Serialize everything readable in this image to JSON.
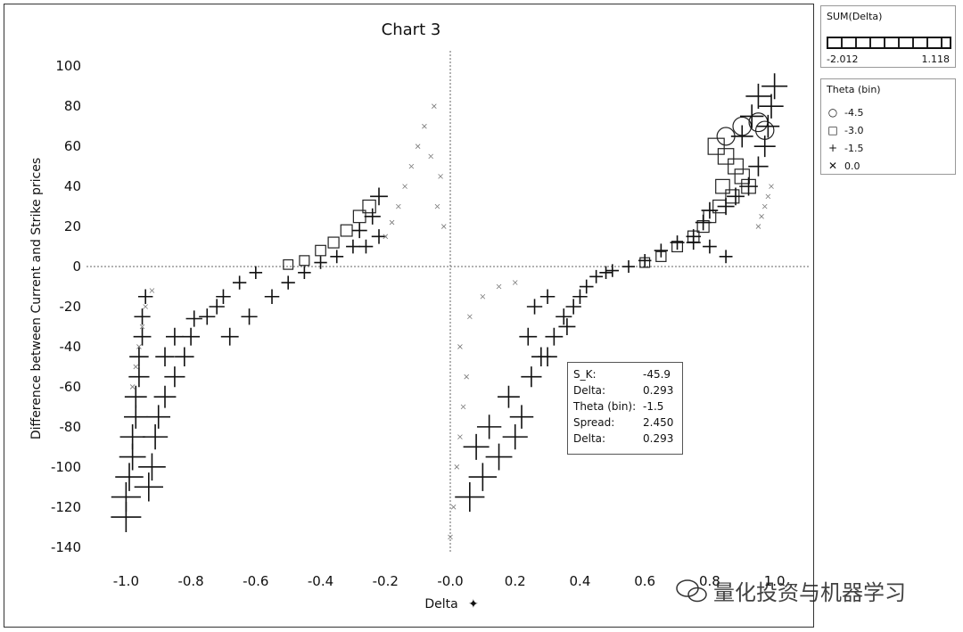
{
  "chart_data": {
    "type": "scatter",
    "title": "Chart 3",
    "xlabel": "Delta",
    "ylabel": "Difference between Current and Strike prices",
    "xlim": [
      -1.1,
      1.1
    ],
    "ylim": [
      -145,
      105
    ],
    "x_ticks": [
      "-1.0",
      "-0.8",
      "-0.6",
      "-0.4",
      "-0.2",
      "-0.0",
      "0.2",
      "0.4",
      "0.6",
      "0.8",
      "1.0"
    ],
    "x_tick_values": [
      -1.0,
      -0.8,
      -0.6,
      -0.4,
      -0.2,
      0.0,
      0.2,
      0.4,
      0.6,
      0.8,
      1.0
    ],
    "y_ticks": [
      "100",
      "80",
      "60",
      "40",
      "20",
      "0",
      "-20",
      "-40",
      "-60",
      "-80",
      "-100",
      "-120",
      "-140"
    ],
    "y_tick_values": [
      100,
      80,
      60,
      40,
      20,
      0,
      -20,
      -40,
      -60,
      -80,
      -100,
      -120,
      -140
    ],
    "reference_lines": {
      "x": 0,
      "y": 0,
      "style": "dotted"
    },
    "grid": false,
    "series": [
      {
        "name": "-4.5",
        "shape": "circle",
        "points": [
          [
            0.85,
            65
          ],
          [
            0.9,
            70
          ],
          [
            0.95,
            72
          ],
          [
            0.97,
            68
          ]
        ]
      },
      {
        "name": "-3.0",
        "shape": "square",
        "points": [
          [
            0.82,
            60
          ],
          [
            0.85,
            55
          ],
          [
            0.88,
            50
          ],
          [
            0.9,
            45
          ],
          [
            0.92,
            40
          ],
          [
            0.84,
            40
          ],
          [
            0.87,
            35
          ],
          [
            0.8,
            25
          ],
          [
            0.83,
            30
          ],
          [
            0.78,
            20
          ],
          [
            0.75,
            15
          ],
          [
            0.7,
            10
          ],
          [
            0.65,
            5
          ],
          [
            0.6,
            2
          ],
          [
            -0.25,
            30
          ],
          [
            -0.28,
            25
          ],
          [
            -0.32,
            18
          ],
          [
            -0.36,
            12
          ],
          [
            -0.4,
            8
          ],
          [
            -0.45,
            3
          ],
          [
            -0.5,
            1
          ]
        ]
      },
      {
        "name": "-1.5",
        "shape": "plus",
        "points": [
          [
            -1.0,
            -125
          ],
          [
            -1.0,
            -115
          ],
          [
            -0.99,
            -105
          ],
          [
            -0.98,
            -95
          ],
          [
            -0.98,
            -85
          ],
          [
            -0.97,
            -75
          ],
          [
            -0.97,
            -65
          ],
          [
            -0.96,
            -55
          ],
          [
            -0.96,
            -45
          ],
          [
            -0.95,
            -35
          ],
          [
            -0.95,
            -25
          ],
          [
            -0.94,
            -15
          ],
          [
            -0.93,
            -110
          ],
          [
            -0.92,
            -100
          ],
          [
            -0.91,
            -85
          ],
          [
            -0.9,
            -75
          ],
          [
            -0.88,
            -65
          ],
          [
            -0.85,
            -55
          ],
          [
            -0.82,
            -45
          ],
          [
            -0.8,
            -35
          ],
          [
            -0.75,
            -25
          ],
          [
            -0.7,
            -15
          ],
          [
            -0.65,
            -8
          ],
          [
            -0.6,
            -3
          ],
          [
            -0.88,
            -45
          ],
          [
            -0.85,
            -35
          ],
          [
            -0.79,
            -26
          ],
          [
            -0.72,
            -20
          ],
          [
            -0.68,
            -35
          ],
          [
            -0.62,
            -25
          ],
          [
            -0.55,
            -15
          ],
          [
            -0.5,
            -8
          ],
          [
            -0.45,
            -3
          ],
          [
            -0.4,
            2
          ],
          [
            -0.35,
            5
          ],
          [
            -0.3,
            10
          ],
          [
            -0.28,
            18
          ],
          [
            -0.24,
            25
          ],
          [
            -0.22,
            35
          ],
          [
            -0.26,
            10
          ],
          [
            -0.22,
            15
          ],
          [
            0.1,
            -105
          ],
          [
            0.06,
            -115
          ],
          [
            0.15,
            -95
          ],
          [
            0.2,
            -85
          ],
          [
            0.22,
            -75
          ],
          [
            0.18,
            -65
          ],
          [
            0.25,
            -55
          ],
          [
            0.28,
            -45
          ],
          [
            0.3,
            -45
          ],
          [
            0.24,
            -35
          ],
          [
            0.32,
            -35
          ],
          [
            0.35,
            -25
          ],
          [
            0.38,
            -20
          ],
          [
            0.4,
            -15
          ],
          [
            0.42,
            -10
          ],
          [
            0.45,
            -5
          ],
          [
            0.48,
            -3
          ],
          [
            0.5,
            -2
          ],
          [
            0.3,
            -15
          ],
          [
            0.26,
            -20
          ],
          [
            0.36,
            -30
          ],
          [
            0.12,
            -80
          ],
          [
            0.08,
            -90
          ],
          [
            0.55,
            0
          ],
          [
            0.6,
            3
          ],
          [
            0.65,
            8
          ],
          [
            0.7,
            12
          ],
          [
            0.75,
            15
          ],
          [
            0.78,
            22
          ],
          [
            0.8,
            28
          ],
          [
            0.85,
            30
          ],
          [
            0.88,
            35
          ],
          [
            0.92,
            40
          ],
          [
            0.95,
            50
          ],
          [
            0.97,
            60
          ],
          [
            0.98,
            70
          ],
          [
            0.99,
            80
          ],
          [
            1.0,
            90
          ],
          [
            0.95,
            85
          ],
          [
            0.93,
            75
          ],
          [
            0.9,
            65
          ],
          [
            0.85,
            5
          ],
          [
            0.8,
            10
          ],
          [
            0.75,
            12
          ]
        ]
      },
      {
        "name": "0.0",
        "shape": "x",
        "points": [
          [
            -0.98,
            -60
          ],
          [
            -0.97,
            -50
          ],
          [
            -0.96,
            -40
          ],
          [
            -0.95,
            -30
          ],
          [
            -0.94,
            -20
          ],
          [
            -0.92,
            -12
          ],
          [
            -0.05,
            80
          ],
          [
            -0.08,
            70
          ],
          [
            -0.1,
            60
          ],
          [
            -0.12,
            50
          ],
          [
            -0.14,
            40
          ],
          [
            -0.16,
            30
          ],
          [
            -0.18,
            22
          ],
          [
            -0.2,
            15
          ],
          [
            -0.06,
            55
          ],
          [
            -0.03,
            45
          ],
          [
            -0.04,
            30
          ],
          [
            -0.02,
            20
          ],
          [
            0.03,
            -40
          ],
          [
            0.05,
            -55
          ],
          [
            0.04,
            -70
          ],
          [
            0.03,
            -85
          ],
          [
            0.02,
            -100
          ],
          [
            0.01,
            -120
          ],
          [
            0.0,
            -135
          ],
          [
            0.06,
            -25
          ],
          [
            0.1,
            -15
          ],
          [
            0.15,
            -10
          ],
          [
            0.2,
            -8
          ],
          [
            0.97,
            30
          ],
          [
            0.96,
            25
          ],
          [
            0.95,
            20
          ],
          [
            0.98,
            35
          ],
          [
            0.99,
            40
          ]
        ]
      }
    ]
  },
  "legend_color": {
    "title": "SUM(Delta)",
    "min": "-2.012",
    "max": "1.118"
  },
  "legend_shape": {
    "title": "Theta (bin)",
    "items": [
      {
        "label": "-4.5",
        "glyph": "○"
      },
      {
        "label": "-3.0",
        "glyph": "□"
      },
      {
        "label": "-1.5",
        "glyph": "+"
      },
      {
        "label": "0.0",
        "glyph": "✕"
      }
    ]
  },
  "tooltip": {
    "rows": [
      {
        "key": "S_K:",
        "value": "-45.9"
      },
      {
        "key": "Delta:",
        "value": "0.293"
      },
      {
        "key": "Theta (bin):",
        "value": "-1.5"
      },
      {
        "key": "Spread:",
        "value": "2.450"
      },
      {
        "key": "Delta:",
        "value": "0.293"
      }
    ]
  },
  "watermark": {
    "text": "量化投资与机器学习",
    "icon": "wechat-icon"
  }
}
